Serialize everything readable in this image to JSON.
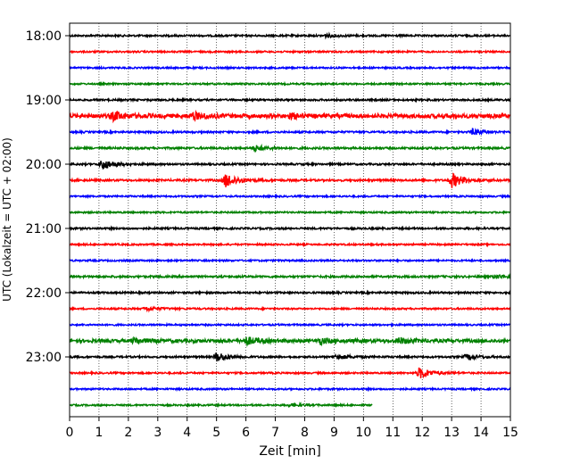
{
  "chart_data": {
    "type": "line",
    "title": "",
    "xlabel": "Zeit  [min]",
    "ylabel": "UTC (Lokalzeit = UTC + 02:00)",
    "xlim": [
      0,
      15
    ],
    "x_ticks": [
      "0",
      "1",
      "2",
      "3",
      "4",
      "5",
      "6",
      "7",
      "8",
      "9",
      "10",
      "11",
      "12",
      "13",
      "14",
      "15"
    ],
    "y_ticks": [
      "18:00",
      "19:00",
      "20:00",
      "21:00",
      "22:00",
      "23:00"
    ],
    "grid": "vertical-dotted",
    "trace_colors": [
      "#000000",
      "#ff0000",
      "#0000ff",
      "#008000"
    ],
    "traces": [
      {
        "start": "18:00",
        "end_minute": 15,
        "amplitude": 1.0,
        "events": [
          {
            "minute": 8.7,
            "amp": 1.5
          }
        ]
      },
      {
        "start": "18:15",
        "end_minute": 15,
        "amplitude": 0.9,
        "events": []
      },
      {
        "start": "18:30",
        "end_minute": 15,
        "amplitude": 0.9,
        "events": []
      },
      {
        "start": "18:45",
        "end_minute": 15,
        "amplitude": 0.9,
        "events": []
      },
      {
        "start": "19:00",
        "end_minute": 15,
        "amplitude": 1.0,
        "events": []
      },
      {
        "start": "19:15",
        "end_minute": 15,
        "amplitude": 2.2,
        "events": [
          {
            "minute": 1.5,
            "amp": 4.0
          },
          {
            "minute": 4.2,
            "amp": 3.5
          },
          {
            "minute": 7.5,
            "amp": 2.0
          }
        ]
      },
      {
        "start": "19:30",
        "end_minute": 15,
        "amplitude": 1.0,
        "events": [
          {
            "minute": 13.7,
            "amp": 3.0
          }
        ]
      },
      {
        "start": "19:45",
        "end_minute": 15,
        "amplitude": 1.1,
        "events": [
          {
            "minute": 6.3,
            "amp": 3.0
          }
        ]
      },
      {
        "start": "20:00",
        "end_minute": 15,
        "amplitude": 1.0,
        "events": [
          {
            "minute": 1.1,
            "amp": 6.0
          }
        ]
      },
      {
        "start": "20:15",
        "end_minute": 15,
        "amplitude": 1.1,
        "events": [
          {
            "minute": 5.3,
            "amp": 8.0
          },
          {
            "minute": 13.0,
            "amp": 8.0
          }
        ]
      },
      {
        "start": "20:30",
        "end_minute": 15,
        "amplitude": 0.9,
        "events": []
      },
      {
        "start": "20:45",
        "end_minute": 15,
        "amplitude": 0.9,
        "events": []
      },
      {
        "start": "21:00",
        "end_minute": 15,
        "amplitude": 1.0,
        "events": []
      },
      {
        "start": "21:15",
        "end_minute": 15,
        "amplitude": 0.9,
        "events": []
      },
      {
        "start": "21:30",
        "end_minute": 15,
        "amplitude": 0.9,
        "events": []
      },
      {
        "start": "21:45",
        "end_minute": 15,
        "amplitude": 1.1,
        "events": [
          {
            "minute": 14.5,
            "amp": 2.0
          }
        ]
      },
      {
        "start": "22:00",
        "end_minute": 15,
        "amplitude": 1.0,
        "events": []
      },
      {
        "start": "22:15",
        "end_minute": 15,
        "amplitude": 0.9,
        "events": [
          {
            "minute": 2.6,
            "amp": 2.0
          }
        ]
      },
      {
        "start": "22:30",
        "end_minute": 15,
        "amplitude": 0.9,
        "events": []
      },
      {
        "start": "22:45",
        "end_minute": 15,
        "amplitude": 1.8,
        "events": [
          {
            "minute": 2.2,
            "amp": 2.5
          },
          {
            "minute": 6.0,
            "amp": 4.0
          },
          {
            "minute": 8.5,
            "amp": 3.0
          },
          {
            "minute": 11.2,
            "amp": 3.0
          }
        ]
      },
      {
        "start": "23:00",
        "end_minute": 15,
        "amplitude": 1.0,
        "events": [
          {
            "minute": 5.0,
            "amp": 5.0
          },
          {
            "minute": 9.1,
            "amp": 2.5
          },
          {
            "minute": 13.5,
            "amp": 2.5
          }
        ]
      },
      {
        "start": "23:15",
        "end_minute": 15,
        "amplitude": 0.9,
        "events": [
          {
            "minute": 11.9,
            "amp": 6.0
          }
        ]
      },
      {
        "start": "23:30",
        "end_minute": 15,
        "amplitude": 0.9,
        "events": []
      },
      {
        "start": "23:45",
        "end_minute": 10.3,
        "amplitude": 0.9,
        "events": [
          {
            "minute": 7.5,
            "amp": 1.5
          }
        ]
      }
    ]
  }
}
